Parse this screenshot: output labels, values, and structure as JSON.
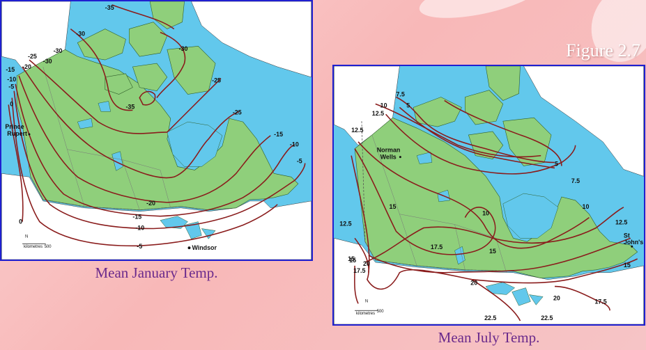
{
  "figure_label": "Figure 2.7",
  "january": {
    "caption": "Mean January Temp.",
    "isotherm_labels": [
      "-35",
      "-30",
      "-30",
      "-30",
      "-25",
      "-25",
      "-20",
      "-15",
      "-10",
      "-5",
      "-15",
      "-10",
      "-5",
      "0",
      "-20",
      "-15",
      "-10",
      "-5",
      "0",
      "-35",
      "-30",
      "-25"
    ],
    "cities": [
      "Prince Rupert",
      "Windsor"
    ],
    "scale": {
      "unit": "kilometres",
      "value": "500"
    }
  },
  "july": {
    "caption": "Mean July Temp.",
    "isotherm_labels": [
      "7.5",
      "10",
      "5",
      "12.5",
      "12.5",
      "12.5",
      "15",
      "10",
      "5",
      "7.5",
      "10",
      "12.5",
      "15",
      "15",
      "17.5",
      "15",
      "20",
      "17.5",
      "20",
      "20",
      "22.5",
      "22.5",
      "17.5",
      "15"
    ],
    "cities": [
      "Norman Wells",
      "St John's"
    ],
    "scale": {
      "unit": "kilometres",
      "value": "500"
    }
  }
}
